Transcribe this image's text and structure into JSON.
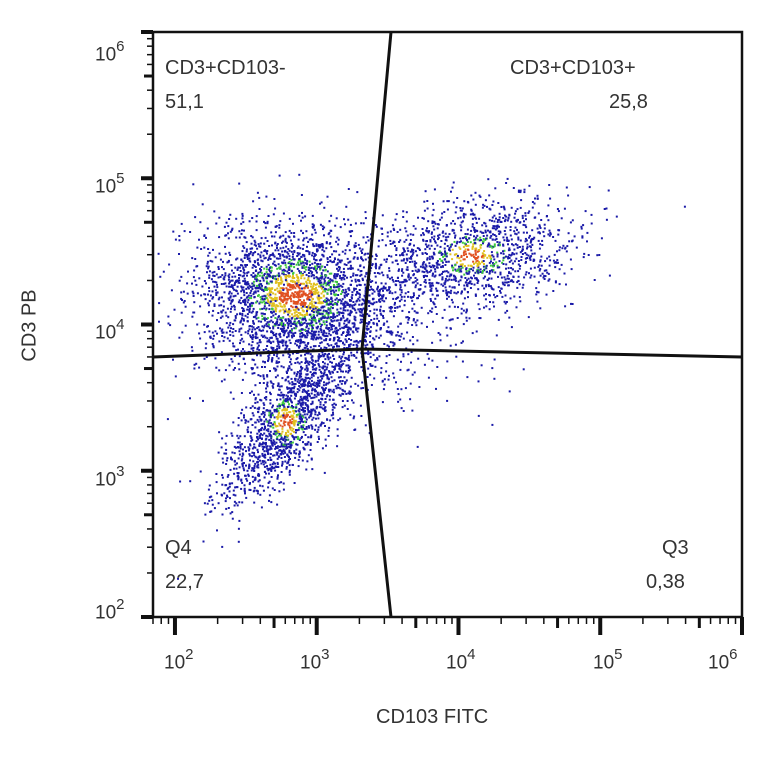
{
  "chart_data": {
    "type": "scatter",
    "subtype": "flow-cytometry-quadrant-density-plot",
    "title": "",
    "xlabel": "CD103 FITC",
    "ylabel": "CD3 PB",
    "xscale": "log",
    "yscale": "log",
    "xlim": [
      70,
      1000000
    ],
    "ylim": [
      100,
      1000000
    ],
    "x_ticks": [
      "10^2",
      "10^3",
      "10^4",
      "10^5",
      "10^6"
    ],
    "y_ticks": [
      "10^2",
      "10^3",
      "10^4",
      "10^5",
      "10^6"
    ],
    "grid": false,
    "legend": null,
    "quadrant_gate": {
      "x_center": 2500,
      "y_center": 6800
    },
    "quadrants": [
      {
        "position": "upper-left",
        "name": "CD3+CD103-",
        "percent": "51,1"
      },
      {
        "position": "upper-right",
        "name": "CD3+CD103+",
        "percent": "25,8"
      },
      {
        "position": "lower-left",
        "name": "Q4",
        "percent": "22,7"
      },
      {
        "position": "lower-right",
        "name": "Q3",
        "percent": "0,38"
      }
    ],
    "populations": [
      {
        "label": "CD3+CD103- cluster",
        "x_center": 700,
        "y_center": 16000,
        "density": "high"
      },
      {
        "label": "CD3+CD103+ cluster",
        "x_center": 12000,
        "y_center": 30000,
        "density": "medium"
      },
      {
        "label": "CD3- cluster",
        "x_center": 600,
        "y_center": 2200,
        "density": "medium"
      }
    ],
    "density_colors": [
      "#1a1aa8",
      "#3cc83c",
      "#e0c020",
      "#e05020"
    ]
  },
  "labels": {
    "q_ul_name": "CD3+CD103-",
    "q_ul_pct": "51,1",
    "q_ur_name": "CD3+CD103+",
    "q_ur_pct": "25,8",
    "q_ll_name": "Q4",
    "q_ll_pct": "22,7",
    "q_lr_name": "Q3",
    "q_lr_pct": "0,38",
    "xlabel": "CD103 FITC",
    "ylabel": "CD3 PB",
    "tick_base": "10",
    "x_exp": [
      "2",
      "3",
      "4",
      "5",
      "6"
    ],
    "y_exp": [
      "6",
      "5",
      "4",
      "3",
      "2"
    ]
  }
}
